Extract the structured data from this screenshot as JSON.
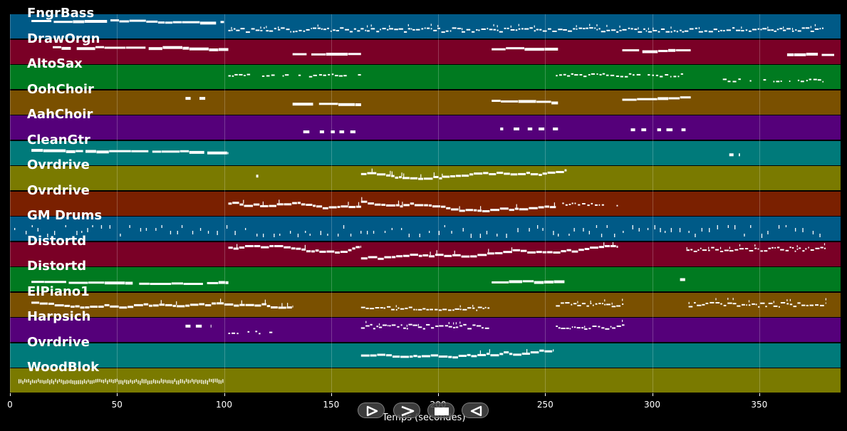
{
  "chart_data": {
    "type": "piano-roll",
    "xlabel": "Temps (secondes)",
    "xlim": [
      0,
      388
    ],
    "xticks": [
      0,
      50,
      100,
      150,
      200,
      250,
      300,
      350
    ],
    "vertical_grid": true,
    "note_color": "#ffffff",
    "tracks": [
      {
        "name": "FngrBass",
        "color": "#005a87",
        "segments": [
          [
            10,
            100,
            "long"
          ],
          [
            102,
            380,
            "dense"
          ]
        ]
      },
      {
        "name": "DrawOrgn",
        "color": "#7a0026",
        "segments": [
          [
            20,
            102,
            "long"
          ],
          [
            132,
            164,
            "long"
          ],
          [
            225,
            256,
            "long"
          ],
          [
            286,
            318,
            "long"
          ],
          [
            363,
            385,
            "long"
          ]
        ]
      },
      {
        "name": "AltoSax",
        "color": "#007a20",
        "segments": [
          [
            102,
            164,
            "sparse"
          ],
          [
            255,
            318,
            "sparse"
          ],
          [
            333,
            380,
            "sparse"
          ]
        ]
      },
      {
        "name": "OohChoir",
        "color": "#7a5000",
        "segments": [
          [
            82,
            94,
            "blocks"
          ],
          [
            132,
            164,
            "long"
          ],
          [
            225,
            256,
            "long"
          ],
          [
            286,
            318,
            "long"
          ]
        ]
      },
      {
        "name": "AahChoir",
        "color": "#55007a",
        "segments": [
          [
            137,
            164,
            "blocks"
          ],
          [
            229,
            256,
            "blocks"
          ],
          [
            290,
            318,
            "blocks"
          ]
        ]
      },
      {
        "name": "CleanGtr",
        "color": "#007a7a",
        "segments": [
          [
            10,
            102,
            "long"
          ],
          [
            336,
            341,
            "blocks"
          ]
        ]
      },
      {
        "name": "Ovrdrive",
        "color": "#7a7a00",
        "segments": [
          [
            115,
            116,
            "blocks"
          ],
          [
            164,
            260,
            "melody"
          ]
        ]
      },
      {
        "name": "Ovrdrive",
        "color": "#7a2000",
        "segments": [
          [
            102,
            164,
            "melody"
          ],
          [
            164,
            255,
            "melody"
          ],
          [
            258,
            284,
            "sparse"
          ]
        ]
      },
      {
        "name": "GM Drums",
        "color": "#005a87",
        "segments": [
          [
            2,
            380,
            "drums"
          ]
        ]
      },
      {
        "name": "Distortd",
        "color": "#7a0026",
        "segments": [
          [
            102,
            164,
            "melody"
          ],
          [
            164,
            284,
            "melody"
          ],
          [
            316,
            381,
            "dense"
          ]
        ]
      },
      {
        "name": "Distortd",
        "color": "#007a20",
        "segments": [
          [
            10,
            102,
            "long"
          ],
          [
            225,
            259,
            "long"
          ],
          [
            313,
            317,
            "blocks"
          ]
        ]
      },
      {
        "name": "ElPiano1",
        "color": "#7a5000",
        "segments": [
          [
            10,
            132,
            "melody"
          ],
          [
            164,
            224,
            "dense"
          ],
          [
            255,
            287,
            "dense"
          ],
          [
            317,
            381,
            "dense"
          ]
        ]
      },
      {
        "name": "Harpsich",
        "color": "#55007a",
        "segments": [
          [
            82,
            94,
            "blocks"
          ],
          [
            102,
            125,
            "sparse"
          ],
          [
            164,
            224,
            "dense"
          ],
          [
            255,
            287,
            "dense"
          ]
        ]
      },
      {
        "name": "Ovrdrive",
        "color": "#007a7a",
        "segments": [
          [
            164,
            254,
            "melody"
          ]
        ]
      },
      {
        "name": "WoodBlok",
        "color": "#7a7a00",
        "segments": [
          [
            4,
            100,
            "wood"
          ]
        ]
      }
    ]
  },
  "controls": [
    {
      "name": "play-icon",
      "label": "play"
    },
    {
      "name": "forward-icon",
      "label": "forward"
    },
    {
      "name": "stop-icon",
      "label": "stop"
    },
    {
      "name": "back-icon",
      "label": "back"
    }
  ]
}
